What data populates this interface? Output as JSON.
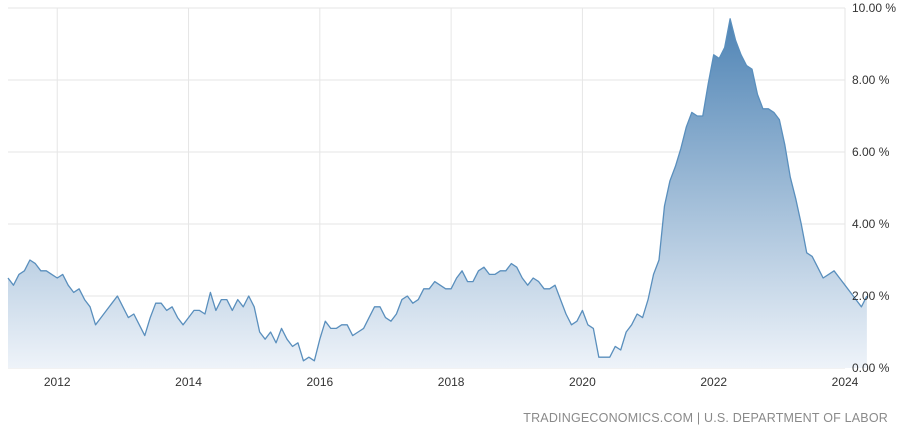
{
  "source_text": "TRADINGECONOMICS.COM | U.S. DEPARTMENT OF LABOR",
  "colors": {
    "line": "#5a8fbd",
    "fill_top": "#4f84b5",
    "fill_bottom": "#eef3f9",
    "grid": "#e6e6e6",
    "axis_text": "#333333",
    "source_text": "#8a8a8a"
  },
  "chart_data": {
    "type": "area",
    "title": "",
    "xlabel": "",
    "ylabel": "",
    "grid": true,
    "legend": "none",
    "x_start": "2011-04",
    "x_end": "2024-02",
    "xlim": [
      2011.25,
      2024.0
    ],
    "ylim": [
      0,
      10
    ],
    "x_tick_labels": [
      "2012",
      "2014",
      "2016",
      "2018",
      "2020",
      "2022",
      "2024"
    ],
    "x_tick_values": [
      2012,
      2014,
      2016,
      2018,
      2020,
      2022,
      2024
    ],
    "y_tick_labels": [
      "0.00 %",
      "2.00 %",
      "4.00 %",
      "6.00 %",
      "8.00 %",
      "10.00 %"
    ],
    "y_tick_values": [
      0,
      2,
      4,
      6,
      8,
      10
    ],
    "series": [
      {
        "values": [
          2.5,
          2.3,
          2.6,
          2.7,
          3.0,
          2.9,
          2.7,
          2.7,
          2.6,
          2.5,
          2.6,
          2.3,
          2.1,
          2.2,
          1.9,
          1.7,
          1.2,
          1.4,
          1.6,
          1.8,
          2.0,
          1.7,
          1.4,
          1.5,
          1.2,
          0.9,
          1.4,
          1.8,
          1.8,
          1.6,
          1.7,
          1.4,
          1.2,
          1.4,
          1.6,
          1.6,
          1.5,
          2.1,
          1.6,
          1.9,
          1.9,
          1.6,
          1.9,
          1.7,
          2.0,
          1.7,
          1.0,
          0.8,
          1.0,
          0.7,
          1.1,
          0.8,
          0.6,
          0.7,
          0.2,
          0.3,
          0.2,
          0.8,
          1.3,
          1.1,
          1.1,
          1.2,
          1.2,
          0.9,
          1.0,
          1.1,
          1.4,
          1.7,
          1.7,
          1.4,
          1.3,
          1.5,
          1.9,
          2.0,
          1.8,
          1.9,
          2.2,
          2.2,
          2.4,
          2.3,
          2.2,
          2.2,
          2.5,
          2.7,
          2.4,
          2.4,
          2.7,
          2.8,
          2.6,
          2.6,
          2.7,
          2.7,
          2.9,
          2.8,
          2.5,
          2.3,
          2.5,
          2.4,
          2.2,
          2.2,
          2.3,
          1.9,
          1.5,
          1.2,
          1.3,
          1.6,
          1.2,
          1.1,
          0.3,
          0.3,
          0.3,
          0.6,
          0.5,
          1.0,
          1.2,
          1.5,
          1.4,
          1.9,
          2.6,
          3.0,
          4.5,
          5.2,
          5.6,
          6.1,
          6.7,
          7.1,
          7.0,
          7.0,
          7.9,
          8.7,
          8.6,
          8.9,
          9.7,
          9.1,
          8.7,
          8.4,
          8.3,
          7.6,
          7.2,
          7.2,
          7.1,
          6.9,
          6.2,
          5.3,
          4.7,
          4.0,
          3.2,
          3.1,
          2.8,
          2.5,
          2.6,
          2.7,
          2.5,
          2.3,
          2.1,
          1.9,
          1.7,
          2.0
        ]
      }
    ]
  }
}
